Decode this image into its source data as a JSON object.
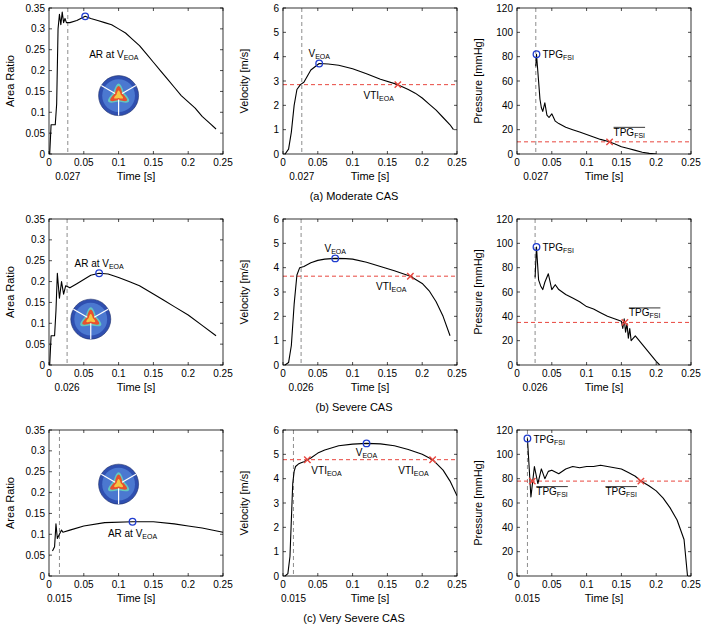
{
  "chart_data": [
    {
      "type": "line",
      "x_label": "Time [s]",
      "y_label": "Area Ratio",
      "xlim": [
        0,
        0.25
      ],
      "xticks": [
        0,
        0.05,
        0.1,
        0.15,
        0.2,
        0.25
      ],
      "ylim": [
        0,
        0.35
      ],
      "yticks": [
        0,
        0.05,
        0.1,
        0.15,
        0.2,
        0.25,
        0.3,
        0.35
      ],
      "series": [
        {
          "color": "#000000",
          "x": [
            0.001,
            0.003,
            0.009,
            0.011,
            0.013,
            0.015,
            0.017,
            0.019,
            0.021,
            0.023,
            0.025,
            0.03,
            0.04,
            0.052,
            0.06,
            0.07,
            0.08,
            0.09,
            0.1,
            0.11,
            0.12,
            0.13,
            0.14,
            0.15,
            0.16,
            0.17,
            0.18,
            0.19,
            0.2,
            0.21,
            0.22,
            0.23,
            0.24
          ],
          "values": [
            0,
            0.07,
            0.07,
            0.12,
            0.3,
            0.335,
            0.31,
            0.34,
            0.315,
            0.325,
            0.315,
            0.315,
            0.32,
            0.33,
            0.325,
            0.32,
            0.315,
            0.31,
            0.3,
            0.29,
            0.275,
            0.26,
            0.24,
            0.22,
            0.2,
            0.18,
            0.16,
            0.14,
            0.125,
            0.11,
            0.09,
            0.075,
            0.06
          ]
        }
      ],
      "annotations": [
        {
          "type": "vline",
          "x": 0.027,
          "color": "#808080",
          "line_style": "dashed"
        },
        {
          "type": "point",
          "x": 0.052,
          "y": 0.33,
          "marker": "circle",
          "color": "#1f3ccf",
          "text": "AR at V",
          "sub": "EOA"
        }
      ]
    },
    {
      "type": "line",
      "x_label": "Time [s]",
      "y_label": "Velocity [m/s]",
      "xlim": [
        0,
        0.25
      ],
      "xticks": [
        0,
        0.05,
        0.1,
        0.15,
        0.2,
        0.25
      ],
      "ylim": [
        0,
        6
      ],
      "yticks": [
        0,
        1,
        2,
        3,
        4,
        5,
        6
      ],
      "caption": "(a) Moderate CAS",
      "series": [
        {
          "color": "#000000",
          "x": [
            0.003,
            0.008,
            0.012,
            0.016,
            0.02,
            0.025,
            0.03,
            0.04,
            0.052,
            0.065,
            0.08,
            0.1,
            0.12,
            0.14,
            0.165,
            0.18,
            0.19,
            0.2,
            0.21,
            0.22,
            0.23,
            0.24,
            0.245
          ],
          "values": [
            0,
            0.2,
            0.9,
            2.0,
            2.65,
            2.85,
            2.95,
            3.45,
            3.72,
            3.7,
            3.65,
            3.5,
            3.3,
            3.07,
            2.85,
            2.65,
            2.5,
            2.3,
            2.05,
            1.8,
            1.5,
            1.2,
            1.0
          ]
        }
      ],
      "annotations": [
        {
          "type": "vline",
          "x": 0.027,
          "color": "#808080",
          "line_style": "dashed"
        },
        {
          "type": "hline",
          "y": 2.85,
          "color": "#e8473f",
          "line_style": "dashed"
        },
        {
          "type": "point",
          "x": 0.052,
          "y": 3.72,
          "marker": "circle",
          "color": "#1f3ccf",
          "text": "V",
          "sub": "EOA"
        },
        {
          "type": "point",
          "x": 0.165,
          "y": 2.85,
          "marker": "x",
          "color": "#e8473f",
          "text": "VTI",
          "sub": "EOA"
        }
      ]
    },
    {
      "type": "line",
      "x_label": "Time [s]",
      "y_label": "Pressure [mmHg]",
      "xlim": [
        0,
        0.25
      ],
      "xticks": [
        0,
        0.05,
        0.1,
        0.15,
        0.2,
        0.25
      ],
      "ylim": [
        0,
        120
      ],
      "yticks": [
        0,
        20,
        40,
        60,
        80,
        100,
        120
      ],
      "series": [
        {
          "color": "#000000",
          "x": [
            0.027,
            0.028,
            0.031,
            0.033,
            0.035,
            0.037,
            0.04,
            0.043,
            0.046,
            0.05,
            0.055,
            0.06,
            0.07,
            0.08,
            0.09,
            0.1,
            0.11,
            0.12,
            0.13,
            0.14,
            0.15,
            0.16,
            0.17,
            0.18,
            0.19,
            0.2
          ],
          "values": [
            72,
            82,
            60,
            45,
            38,
            35,
            42,
            32,
            30,
            33,
            27,
            25,
            22,
            20,
            18,
            16,
            14,
            12,
            10.5,
            8.5,
            6,
            4.5,
            3,
            1.5,
            0.5,
            0
          ]
        }
      ],
      "annotations": [
        {
          "type": "vline",
          "x": 0.027,
          "color": "#808080",
          "line_style": "dashed"
        },
        {
          "type": "hline",
          "y": 10,
          "color": "#e8473f",
          "line_style": "dashed"
        },
        {
          "type": "point",
          "x": 0.028,
          "y": 82,
          "marker": "circle",
          "color": "#1f3ccf",
          "text": "TPG",
          "sub": "FSI"
        },
        {
          "type": "point",
          "x": 0.133,
          "y": 10,
          "marker": "x",
          "color": "#e8473f",
          "text": "TPG",
          "sub": "FSI",
          "overline": true
        }
      ]
    },
    {
      "type": "line",
      "x_label": "Time [s]",
      "y_label": "Area Ratio",
      "xlim": [
        0,
        0.25
      ],
      "xticks": [
        0,
        0.05,
        0.1,
        0.15,
        0.2,
        0.25
      ],
      "ylim": [
        0,
        0.35
      ],
      "yticks": [
        0,
        0.05,
        0.1,
        0.15,
        0.2,
        0.25,
        0.3,
        0.35
      ],
      "series": [
        {
          "color": "#000000",
          "x": [
            0.001,
            0.003,
            0.008,
            0.01,
            0.012,
            0.015,
            0.018,
            0.021,
            0.024,
            0.03,
            0.04,
            0.05,
            0.06,
            0.072,
            0.085,
            0.1,
            0.115,
            0.13,
            0.15,
            0.165,
            0.18,
            0.2,
            0.22,
            0.24
          ],
          "values": [
            0,
            0.07,
            0.07,
            0.13,
            0.22,
            0.16,
            0.2,
            0.17,
            0.19,
            0.185,
            0.195,
            0.205,
            0.215,
            0.22,
            0.218,
            0.21,
            0.2,
            0.19,
            0.17,
            0.155,
            0.14,
            0.12,
            0.095,
            0.07
          ]
        }
      ],
      "annotations": [
        {
          "type": "vline",
          "x": 0.026,
          "color": "#808080",
          "line_style": "dashed"
        },
        {
          "type": "point",
          "x": 0.072,
          "y": 0.22,
          "marker": "circle",
          "color": "#1f3ccf",
          "text": "AR at V",
          "sub": "EOA"
        }
      ]
    },
    {
      "type": "line",
      "x_label": "Time [s]",
      "y_label": "Velocity [m/s]",
      "xlim": [
        0,
        0.25
      ],
      "xticks": [
        0,
        0.05,
        0.1,
        0.15,
        0.2,
        0.25
      ],
      "ylim": [
        0,
        6
      ],
      "yticks": [
        0,
        1,
        2,
        3,
        4,
        5,
        6
      ],
      "caption": "(b) Severe CAS",
      "series": [
        {
          "color": "#000000",
          "x": [
            0.003,
            0.008,
            0.012,
            0.016,
            0.02,
            0.024,
            0.03,
            0.04,
            0.05,
            0.06,
            0.075,
            0.09,
            0.1,
            0.12,
            0.14,
            0.16,
            0.183,
            0.2,
            0.21,
            0.22,
            0.23,
            0.24
          ],
          "values": [
            0,
            0.1,
            0.8,
            2.5,
            3.7,
            4.0,
            4.05,
            4.2,
            4.3,
            4.35,
            4.38,
            4.37,
            4.35,
            4.22,
            4.05,
            3.87,
            3.65,
            3.35,
            3.05,
            2.6,
            2.0,
            1.2
          ]
        }
      ],
      "annotations": [
        {
          "type": "vline",
          "x": 0.026,
          "color": "#808080",
          "line_style": "dashed"
        },
        {
          "type": "hline",
          "y": 3.65,
          "color": "#e8473f",
          "line_style": "dashed"
        },
        {
          "type": "point",
          "x": 0.075,
          "y": 4.38,
          "marker": "circle",
          "color": "#1f3ccf",
          "text": "V",
          "sub": "EOA"
        },
        {
          "type": "point",
          "x": 0.183,
          "y": 3.65,
          "marker": "x",
          "color": "#e8473f",
          "text": "VTI",
          "sub": "EOA"
        }
      ]
    },
    {
      "type": "line",
      "x_label": "Time [s]",
      "y_label": "Pressure [mmHg]",
      "xlim": [
        0,
        0.25
      ],
      "xticks": [
        0,
        0.05,
        0.1,
        0.15,
        0.2,
        0.25
      ],
      "ylim": [
        0,
        120
      ],
      "yticks": [
        0,
        20,
        40,
        60,
        80,
        100,
        120
      ],
      "series": [
        {
          "color": "#000000",
          "x": [
            0.026,
            0.028,
            0.031,
            0.034,
            0.037,
            0.04,
            0.045,
            0.05,
            0.055,
            0.06,
            0.07,
            0.08,
            0.09,
            0.1,
            0.11,
            0.12,
            0.13,
            0.14,
            0.15,
            0.152,
            0.154,
            0.156,
            0.158,
            0.16,
            0.162,
            0.164,
            0.17,
            0.18,
            0.19,
            0.2,
            0.205
          ],
          "values": [
            72,
            97,
            70,
            65,
            62,
            68,
            75,
            62,
            66,
            62,
            58,
            55,
            52,
            48,
            46,
            43,
            40,
            38,
            36,
            30,
            38,
            27,
            34,
            22,
            30,
            20,
            24,
            17,
            10,
            3,
            0
          ]
        }
      ],
      "annotations": [
        {
          "type": "vline",
          "x": 0.026,
          "color": "#808080",
          "line_style": "dashed"
        },
        {
          "type": "hline",
          "y": 35,
          "color": "#e8473f",
          "line_style": "dashed"
        },
        {
          "type": "point",
          "x": 0.028,
          "y": 97,
          "marker": "circle",
          "color": "#1f3ccf",
          "text": "TPG",
          "sub": "FSI"
        },
        {
          "type": "point",
          "x": 0.155,
          "y": 35,
          "marker": "x",
          "color": "#e8473f",
          "text": "TPG",
          "sub": "FSI",
          "overline": true
        }
      ]
    },
    {
      "type": "line",
      "x_label": "Time [s]",
      "y_label": "Area Ratio",
      "xlim": [
        0,
        0.25
      ],
      "xticks": [
        0,
        0.05,
        0.1,
        0.15,
        0.2,
        0.25
      ],
      "ylim": [
        0,
        0.35
      ],
      "yticks": [
        0,
        0.05,
        0.1,
        0.15,
        0.2,
        0.25,
        0.3,
        0.35
      ],
      "series": [
        {
          "color": "#000000",
          "x": [
            0.005,
            0.008,
            0.01,
            0.012,
            0.015,
            0.018,
            0.02,
            0.03,
            0.05,
            0.08,
            0.12,
            0.15,
            0.18,
            0.2,
            0.22,
            0.25
          ],
          "values": [
            0.06,
            0.07,
            0.125,
            0.09,
            0.1,
            0.11,
            0.105,
            0.11,
            0.12,
            0.128,
            0.13,
            0.13,
            0.125,
            0.12,
            0.115,
            0.105
          ]
        }
      ],
      "annotations": [
        {
          "type": "vline",
          "x": 0.015,
          "color": "#808080",
          "line_style": "dashed"
        },
        {
          "type": "point",
          "x": 0.12,
          "y": 0.13,
          "marker": "circle",
          "color": "#1f3ccf",
          "text": "AR at V",
          "sub": "EOA"
        }
      ]
    },
    {
      "type": "line",
      "x_label": "Time [s]",
      "y_label": "Velocity [m/s]",
      "xlim": [
        0,
        0.25
      ],
      "xticks": [
        0,
        0.05,
        0.1,
        0.15,
        0.2,
        0.25
      ],
      "ylim": [
        0,
        6
      ],
      "yticks": [
        0,
        1,
        2,
        3,
        4,
        5,
        6
      ],
      "caption": "(c) Very Severe CAS",
      "series": [
        {
          "color": "#000000",
          "x": [
            0.003,
            0.007,
            0.01,
            0.012,
            0.014,
            0.016,
            0.018,
            0.022,
            0.026,
            0.03,
            0.035,
            0.04,
            0.05,
            0.06,
            0.08,
            0.1,
            0.12,
            0.14,
            0.16,
            0.18,
            0.2,
            0.215,
            0.23,
            0.24,
            0.25
          ],
          "values": [
            0,
            0.1,
            0.8,
            2.3,
            3.8,
            4.3,
            4.5,
            4.6,
            4.65,
            4.7,
            4.78,
            4.85,
            5.05,
            5.18,
            5.35,
            5.42,
            5.45,
            5.43,
            5.35,
            5.2,
            5.0,
            4.78,
            4.35,
            3.9,
            3.3
          ]
        }
      ],
      "annotations": [
        {
          "type": "vline",
          "x": 0.015,
          "color": "#808080",
          "line_style": "dashed"
        },
        {
          "type": "hline",
          "y": 4.78,
          "color": "#e8473f",
          "line_style": "dashed"
        },
        {
          "type": "point",
          "x": 0.12,
          "y": 5.45,
          "marker": "circle",
          "color": "#1f3ccf",
          "text": "V",
          "sub": "EOA"
        },
        {
          "type": "point",
          "x": 0.035,
          "y": 4.78,
          "marker": "x",
          "color": "#e8473f",
          "text": "VTI",
          "sub": "EOA"
        },
        {
          "type": "point",
          "x": 0.215,
          "y": 4.78,
          "marker": "x",
          "color": "#e8473f",
          "text": "VTI",
          "sub": "EOA"
        }
      ]
    },
    {
      "type": "line",
      "x_label": "Time [s]",
      "y_label": "Pressure [mmHg]",
      "xlim": [
        0,
        0.25
      ],
      "xticks": [
        0,
        0.05,
        0.1,
        0.15,
        0.2,
        0.25
      ],
      "ylim": [
        0,
        120
      ],
      "yticks": [
        0,
        20,
        40,
        60,
        80,
        100,
        120
      ],
      "series": [
        {
          "color": "#000000",
          "x": [
            0.015,
            0.02,
            0.025,
            0.03,
            0.035,
            0.04,
            0.045,
            0.05,
            0.06,
            0.07,
            0.08,
            0.09,
            0.1,
            0.11,
            0.12,
            0.13,
            0.14,
            0.15,
            0.16,
            0.17,
            0.178,
            0.19,
            0.2,
            0.21,
            0.22,
            0.23,
            0.24,
            0.245
          ],
          "values": [
            113,
            65,
            90,
            76,
            88,
            80,
            86,
            87,
            84,
            88,
            90,
            89,
            90,
            90,
            91,
            90,
            89,
            88,
            85,
            82,
            78,
            74,
            70,
            64,
            56,
            46,
            30,
            0
          ]
        }
      ],
      "annotations": [
        {
          "type": "vline",
          "x": 0.015,
          "color": "#808080",
          "line_style": "dashed"
        },
        {
          "type": "hline",
          "y": 78,
          "color": "#e8473f",
          "line_style": "dashed"
        },
        {
          "type": "point",
          "x": 0.015,
          "y": 113,
          "marker": "circle",
          "color": "#1f3ccf",
          "text": "TPG",
          "sub": "FSI"
        },
        {
          "type": "point",
          "x": 0.022,
          "y": 78,
          "marker": "x",
          "color": "#e8473f",
          "text": "TPG",
          "sub": "FSI",
          "overline": true
        },
        {
          "type": "point",
          "x": 0.178,
          "y": 78,
          "marker": "x",
          "color": "#e8473f",
          "text": "TPG",
          "sub": "FSI",
          "overline": true
        }
      ]
    }
  ]
}
